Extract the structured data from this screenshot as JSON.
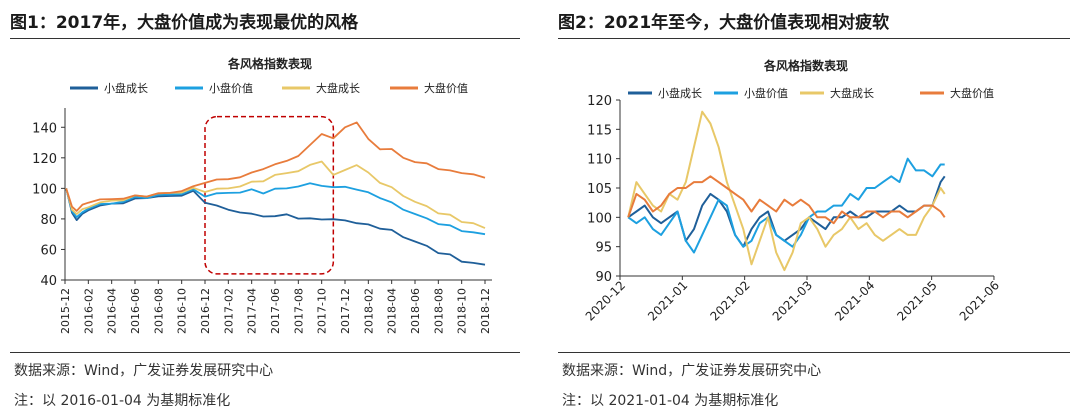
{
  "figures": [
    {
      "title": "图1：2017年，大盘价值成为表现最优的风格",
      "source": "数据来源：Wind，广发证券发展研究中心",
      "note": "注：以 2016-01-04 为基期标准化"
    },
    {
      "title": "图2：2021年至今，大盘价值表现相对疲软",
      "source": "数据来源：Wind，广发证券发展研究中心",
      "note": "注：以 2021-01-04 为基期标准化"
    }
  ],
  "chart_data": [
    {
      "type": "line",
      "title": "各风格指数表现",
      "xlabel": "",
      "ylabel": "",
      "ylim": [
        40,
        150
      ],
      "yticks": [
        40,
        60,
        80,
        100,
        120,
        140
      ],
      "x_tick_labels": [
        "2015-12",
        "2016-02",
        "2016-04",
        "2016-06",
        "2016-08",
        "2016-10",
        "2016-12",
        "2017-02",
        "2017-04",
        "2017-06",
        "2017-08",
        "2017-10",
        "2017-12",
        "2018-02",
        "2018-04",
        "2018-06",
        "2018-08",
        "2018-10",
        "2018-12"
      ],
      "x_domain_months": [
        0,
        36.6
      ],
      "highlight_box": {
        "x_range_months": [
          12,
          23
        ],
        "y_range": [
          44,
          147
        ],
        "style": "dashed",
        "color": "#c00000"
      },
      "series": [
        {
          "name": "小盘成长",
          "color": "#1f5f99",
          "x": [
            0.1,
            0.6,
            1,
            1.5,
            2,
            3,
            4,
            5,
            6,
            7,
            8,
            9,
            10,
            11,
            12,
            13,
            14,
            15,
            16,
            17,
            18,
            19,
            20,
            21,
            22,
            23,
            24,
            25,
            26,
            27,
            28,
            29,
            30,
            31,
            32,
            33,
            34,
            35,
            36
          ],
          "values": [
            100,
            84,
            80,
            83,
            86,
            88,
            90,
            91,
            93,
            94,
            94,
            95,
            96,
            98,
            91,
            88,
            86,
            85,
            83,
            82,
            81,
            83,
            81,
            80,
            80,
            79,
            79,
            78,
            76,
            74,
            72,
            68,
            66,
            62,
            58,
            56,
            52,
            52,
            50
          ]
        },
        {
          "name": "小盘价值",
          "color": "#1da0e0",
          "x": [
            0.1,
            0.6,
            1,
            1.5,
            2,
            3,
            4,
            5,
            6,
            7,
            8,
            9,
            10,
            11,
            12,
            13,
            14,
            15,
            16,
            17,
            18,
            19,
            20,
            21,
            22,
            23,
            24,
            25,
            26,
            27,
            28,
            29,
            30,
            31,
            32,
            33,
            34,
            35,
            36
          ],
          "values": [
            100,
            85,
            82,
            84,
            87,
            89,
            90,
            92,
            94,
            94,
            95,
            96,
            97,
            99,
            95,
            96,
            97,
            98,
            99,
            97,
            99,
            100,
            102,
            103,
            102,
            100,
            101,
            100,
            97,
            94,
            90,
            86,
            84,
            80,
            77,
            75,
            72,
            72,
            70
          ]
        },
        {
          "name": "大盘成长",
          "color": "#e8c868",
          "x": [
            0.1,
            0.6,
            1,
            1.5,
            2,
            3,
            4,
            5,
            6,
            7,
            8,
            9,
            10,
            11,
            12,
            13,
            14,
            15,
            16,
            17,
            18,
            19,
            20,
            21,
            22,
            23,
            24,
            25,
            26,
            27,
            28,
            29,
            30,
            31,
            32,
            33,
            34,
            35,
            36
          ],
          "values": [
            100,
            86,
            84,
            86,
            88,
            90,
            92,
            93,
            95,
            95,
            96,
            97,
            98,
            100,
            98,
            99,
            100,
            102,
            104,
            105,
            108,
            110,
            112,
            115,
            118,
            108,
            112,
            116,
            110,
            104,
            100,
            95,
            92,
            88,
            84,
            82,
            78,
            78,
            74
          ]
        },
        {
          "name": "大盘价值",
          "color": "#e87c3c",
          "x": [
            0.1,
            0.6,
            1,
            1.5,
            2,
            3,
            4,
            5,
            6,
            7,
            8,
            9,
            10,
            11,
            12,
            13,
            14,
            15,
            16,
            17,
            18,
            19,
            20,
            21,
            22,
            23,
            24,
            25,
            26,
            27,
            28,
            29,
            30,
            31,
            32,
            33,
            34,
            35,
            36
          ],
          "values": [
            100,
            88,
            86,
            89,
            91,
            92,
            93,
            94,
            95,
            95,
            96,
            97,
            99,
            101,
            104,
            105,
            106,
            108,
            110,
            113,
            115,
            118,
            122,
            128,
            136,
            132,
            140,
            144,
            132,
            126,
            125,
            120,
            118,
            116,
            113,
            111,
            110,
            110,
            107
          ]
        }
      ]
    },
    {
      "type": "line",
      "title": "各风格指数表现",
      "xlabel": "",
      "ylabel": "",
      "ylim": [
        90,
        120
      ],
      "yticks": [
        90,
        95,
        100,
        105,
        110,
        115,
        120
      ],
      "x_tick_labels": [
        "2020-12",
        "2021-01",
        "2021-02",
        "2021-03",
        "2021-04",
        "2021-05",
        "2021-06"
      ],
      "x_domain_days": [
        0,
        182
      ],
      "series": [
        {
          "name": "小盘成长",
          "color": "#1f5f99",
          "x": [
            4,
            8,
            12,
            16,
            20,
            24,
            28,
            32,
            36,
            40,
            44,
            48,
            52,
            56,
            60,
            64,
            68,
            72,
            76,
            80,
            84,
            88,
            92,
            96,
            100,
            104,
            108,
            112,
            116,
            120,
            124,
            128,
            132,
            136,
            140,
            144,
            148,
            152,
            156,
            158
          ],
          "values": [
            100,
            101,
            102,
            100,
            99,
            100,
            101,
            96,
            98,
            102,
            104,
            103,
            101,
            97,
            95,
            98,
            100,
            101,
            97,
            96,
            97,
            98,
            100,
            99,
            98,
            100,
            100,
            101,
            100,
            100,
            101,
            101,
            101,
            102,
            101,
            101,
            102,
            102,
            106,
            107
          ]
        },
        {
          "name": "小盘价值",
          "color": "#1da0e0",
          "x": [
            4,
            8,
            12,
            16,
            20,
            24,
            28,
            32,
            36,
            40,
            44,
            48,
            52,
            56,
            60,
            64,
            68,
            72,
            76,
            80,
            84,
            88,
            92,
            96,
            100,
            104,
            108,
            112,
            116,
            120,
            124,
            128,
            132,
            136,
            140,
            144,
            148,
            152,
            156,
            158
          ],
          "values": [
            100,
            99,
            100,
            98,
            97,
            99,
            101,
            96,
            94,
            97,
            100,
            103,
            102,
            97,
            95,
            96,
            99,
            100,
            97,
            96,
            95,
            97,
            100,
            101,
            101,
            102,
            102,
            104,
            103,
            105,
            105,
            106,
            107,
            106,
            110,
            108,
            108,
            107,
            109,
            109
          ]
        },
        {
          "name": "大盘成长",
          "color": "#e8c868",
          "x": [
            4,
            8,
            12,
            16,
            20,
            24,
            28,
            32,
            36,
            40,
            44,
            48,
            52,
            56,
            60,
            64,
            68,
            72,
            76,
            80,
            84,
            88,
            92,
            96,
            100,
            104,
            108,
            112,
            116,
            120,
            124,
            128,
            132,
            136,
            140,
            144,
            148,
            152,
            156,
            158
          ],
          "values": [
            100,
            106,
            104,
            102,
            101,
            104,
            103,
            106,
            112,
            118,
            116,
            112,
            106,
            102,
            98,
            92,
            96,
            100,
            94,
            91,
            94,
            99,
            100,
            98,
            95,
            97,
            98,
            100,
            98,
            99,
            97,
            96,
            97,
            98,
            97,
            97,
            100,
            102,
            105,
            104
          ]
        },
        {
          "name": "大盘价值",
          "color": "#e87c3c",
          "x": [
            4,
            8,
            12,
            16,
            20,
            24,
            28,
            32,
            36,
            40,
            44,
            48,
            52,
            56,
            60,
            64,
            68,
            72,
            76,
            80,
            84,
            88,
            92,
            96,
            100,
            104,
            108,
            112,
            116,
            120,
            124,
            128,
            132,
            136,
            140,
            144,
            148,
            152,
            156,
            158
          ],
          "values": [
            100,
            104,
            103,
            101,
            102,
            104,
            105,
            105,
            106,
            106,
            107,
            106,
            105,
            104,
            103,
            101,
            103,
            102,
            101,
            103,
            102,
            103,
            102,
            100,
            100,
            99,
            101,
            100,
            100,
            101,
            101,
            100,
            101,
            101,
            100,
            101,
            102,
            102,
            101,
            100
          ]
        }
      ]
    }
  ]
}
